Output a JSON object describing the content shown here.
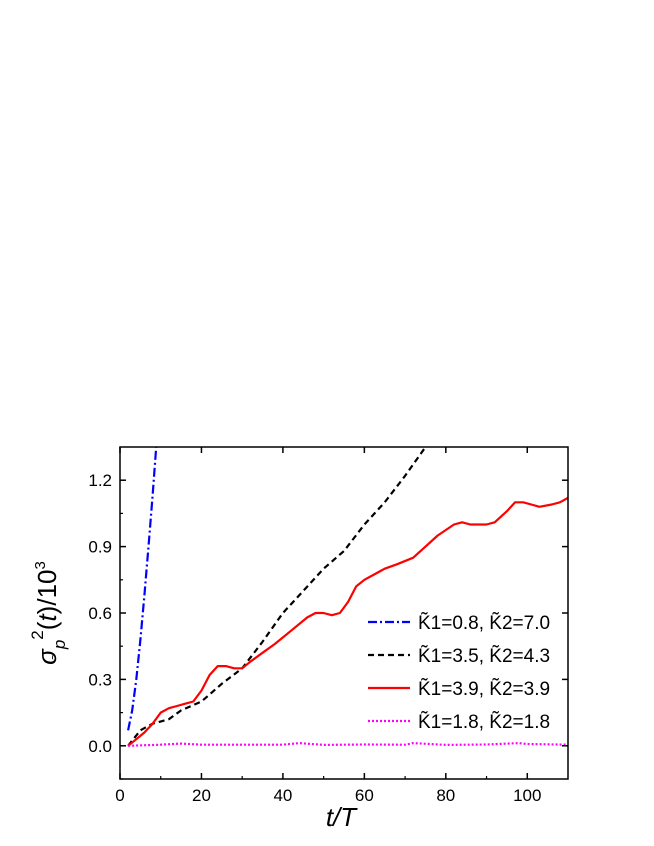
{
  "chart_data": {
    "type": "line",
    "title": "",
    "xlabel": "t/T",
    "ylabel": "σ_p̃²(t)/10³",
    "xlim": [
      0,
      110
    ],
    "ylim": [
      -0.15,
      1.35
    ],
    "xticks": [
      0,
      20,
      40,
      60,
      80,
      100
    ],
    "yticks": [
      0.0,
      0.3,
      0.6,
      0.9,
      1.2
    ],
    "xtick_labels": [
      "0",
      "20",
      "40",
      "60",
      "80",
      "100"
    ],
    "ytick_labels": [
      "0.0",
      "0.3",
      "0.6",
      "0.9",
      "1.2"
    ],
    "grid": false,
    "legend_position": "right",
    "series": [
      {
        "name": "K̃1=0.8, K̃2=7.0",
        "color": "#0000ff",
        "dash": "dashdot",
        "x": [
          2,
          3,
          4,
          5,
          6,
          7,
          8,
          9
        ],
        "y": [
          0.07,
          0.16,
          0.3,
          0.48,
          0.68,
          0.9,
          1.13,
          1.38
        ]
      },
      {
        "name": "K̃1=3.5, K̃2=4.3",
        "color": "#000000",
        "dash": "dash",
        "x": [
          2,
          5,
          8,
          12,
          15,
          20,
          25,
          30,
          35,
          40,
          45,
          50,
          55,
          60,
          65,
          70,
          75
        ],
        "y": [
          0.0,
          0.07,
          0.1,
          0.12,
          0.16,
          0.2,
          0.28,
          0.35,
          0.47,
          0.6,
          0.7,
          0.8,
          0.88,
          1.0,
          1.1,
          1.22,
          1.35
        ]
      },
      {
        "name": "K̃1=3.9, K̃2=3.9",
        "color": "#ff0000",
        "dash": "solid",
        "x": [
          2,
          4,
          6,
          8,
          10,
          12,
          14,
          16,
          18,
          20,
          22,
          24,
          26,
          28,
          30,
          32,
          35,
          38,
          42,
          46,
          48,
          50,
          52,
          54,
          56,
          58,
          60,
          62,
          65,
          68,
          72,
          75,
          78,
          82,
          84,
          86,
          88,
          90,
          92,
          95,
          97,
          99,
          101,
          103,
          106,
          108,
          110
        ],
        "y": [
          0.0,
          0.03,
          0.06,
          0.1,
          0.15,
          0.17,
          0.18,
          0.19,
          0.2,
          0.25,
          0.32,
          0.36,
          0.36,
          0.35,
          0.35,
          0.38,
          0.42,
          0.46,
          0.52,
          0.58,
          0.6,
          0.6,
          0.59,
          0.6,
          0.65,
          0.72,
          0.75,
          0.77,
          0.8,
          0.82,
          0.85,
          0.9,
          0.95,
          1.0,
          1.01,
          1.0,
          1.0,
          1.0,
          1.01,
          1.06,
          1.1,
          1.1,
          1.09,
          1.08,
          1.09,
          1.1,
          1.12
        ]
      },
      {
        "name": "K̃1=1.8, K̃2=1.8",
        "color": "#ff00ff",
        "dash": "dot",
        "x": [
          2,
          10,
          15,
          20,
          30,
          40,
          44,
          50,
          60,
          70,
          72,
          80,
          90,
          98,
          100,
          110
        ],
        "y": [
          0.0,
          0.005,
          0.01,
          0.005,
          0.005,
          0.005,
          0.012,
          0.004,
          0.006,
          0.005,
          0.012,
          0.004,
          0.006,
          0.012,
          0.008,
          0.005
        ]
      }
    ]
  }
}
